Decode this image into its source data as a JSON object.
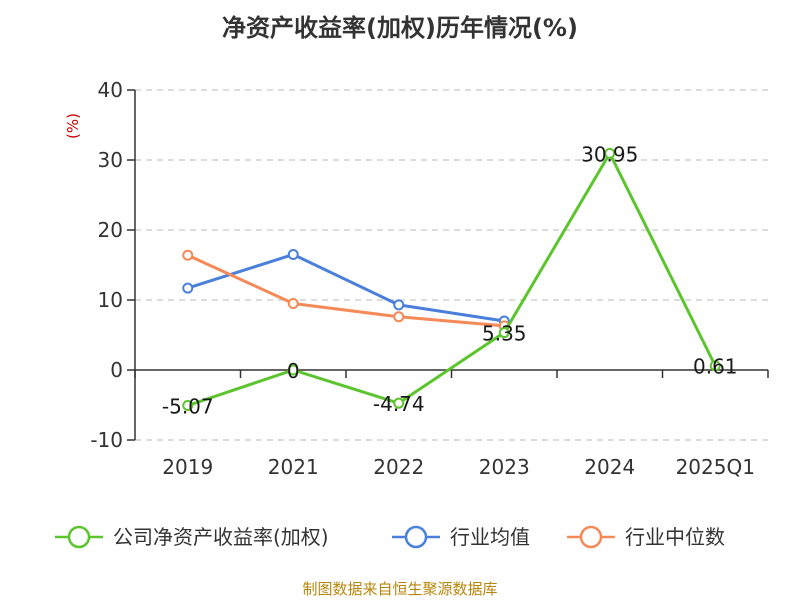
{
  "chart_data": {
    "type": "line",
    "title": "净资产收益率(加权)历年情况(%)",
    "ylabel": "(%)",
    "xlabel": "",
    "categories": [
      "2019",
      "2021",
      "2022",
      "2023",
      "2024",
      "2025Q1"
    ],
    "ylim": [
      -10,
      40
    ],
    "yticks": [
      -10,
      0,
      10,
      20,
      30,
      40
    ],
    "grid": true,
    "legend_position": "bottom",
    "series": [
      {
        "name": "公司净资产收益率(加权)",
        "color": "#5cc42c",
        "values": [
          -5.07,
          0,
          -4.74,
          5.35,
          30.95,
          0.61
        ],
        "labels": [
          "-5.07",
          "0",
          "-4.74",
          "5.35",
          "30.95",
          "0.61"
        ]
      },
      {
        "name": "行业均值",
        "color": "#4a7fdc",
        "values": [
          11.7,
          16.5,
          9.3,
          7.0,
          null,
          null
        ]
      },
      {
        "name": "行业中位数",
        "color": "#f58a58",
        "values": [
          16.4,
          9.5,
          7.6,
          6.3,
          null,
          null
        ]
      }
    ],
    "source": "制图数据来自恒生聚源数据库"
  }
}
